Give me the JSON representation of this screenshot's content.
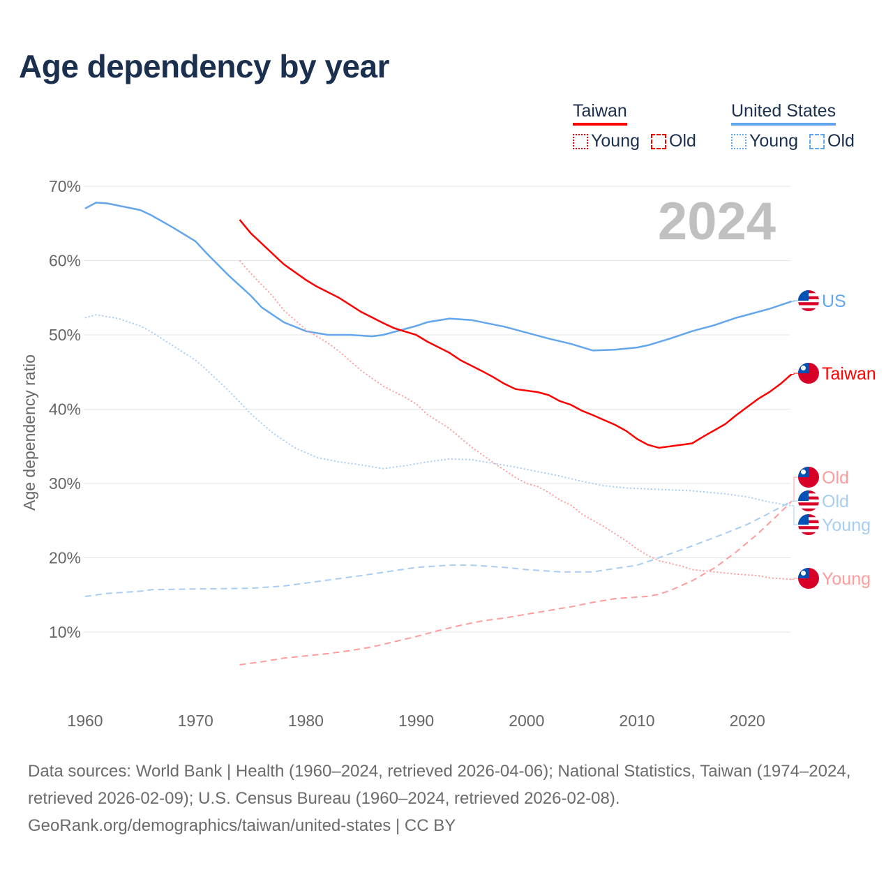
{
  "title": "Age dependency by year",
  "legend": {
    "taiwan": {
      "label": "Taiwan",
      "young": "Young",
      "old": "Old"
    },
    "us": {
      "label": "United States",
      "young": "Young",
      "old": "Old"
    }
  },
  "colors": {
    "taiwan": "#ff0000",
    "taiwan_light": "#ff9c9c",
    "us": "#63a6eb",
    "us_light": "#a8cdf3",
    "grid": "#e6e6e6",
    "year": "#c0c0c0"
  },
  "footer": {
    "sources": "Data sources: World Bank | Health (1960–2024, retrieved 2026-04-06); National Statistics, Taiwan (1974–2024, retrieved 2026-02-09); U.S. Census Bureau (1960–2024, retrieved 2026-02-08).",
    "credit": "GeoRank.org/demographics/taiwan/united-states | CC BY"
  },
  "chart_data": {
    "type": "line",
    "title": "Age dependency by year",
    "ylabel": "Age dependency ratio",
    "xlabel": "",
    "year_overlay": "2024",
    "xlim": [
      1960,
      2024
    ],
    "ylim": [
      0,
      70
    ],
    "xticks": [
      {
        "v": 1960,
        "label": "1960"
      },
      {
        "v": 1970,
        "label": "1970"
      },
      {
        "v": 1980,
        "label": "1980"
      },
      {
        "v": 1990,
        "label": "1990"
      },
      {
        "v": 2000,
        "label": "2000"
      },
      {
        "v": 2010,
        "label": "2010"
      },
      {
        "v": 2020,
        "label": "2020"
      }
    ],
    "yticks": [
      {
        "v": 10,
        "label": "10%"
      },
      {
        "v": 20,
        "label": "20%"
      },
      {
        "v": 30,
        "label": "30%"
      },
      {
        "v": 40,
        "label": "40%"
      },
      {
        "v": 50,
        "label": "50%"
      },
      {
        "v": 60,
        "label": "60%"
      },
      {
        "v": 70,
        "label": "70%"
      }
    ],
    "grid": true,
    "legend_position": "top-right",
    "series": [
      {
        "name": "United States",
        "end_label": "US",
        "flag": "us",
        "color": "us",
        "dash": "solid",
        "points": [
          [
            1960,
            67.0
          ],
          [
            1961,
            67.8
          ],
          [
            1962,
            67.7
          ],
          [
            1964,
            67.1
          ],
          [
            1965,
            66.8
          ],
          [
            1966,
            66.1
          ],
          [
            1968,
            64.4
          ],
          [
            1970,
            62.6
          ],
          [
            1971,
            61.0
          ],
          [
            1973,
            58.0
          ],
          [
            1975,
            55.3
          ],
          [
            1976,
            53.7
          ],
          [
            1978,
            51.7
          ],
          [
            1980,
            50.5
          ],
          [
            1982,
            50.0
          ],
          [
            1984,
            50.0
          ],
          [
            1986,
            49.8
          ],
          [
            1987,
            50.0
          ],
          [
            1989,
            50.8
          ],
          [
            1990,
            51.2
          ],
          [
            1991,
            51.7
          ],
          [
            1993,
            52.2
          ],
          [
            1995,
            52.0
          ],
          [
            1998,
            51.1
          ],
          [
            2000,
            50.3
          ],
          [
            2002,
            49.5
          ],
          [
            2004,
            48.8
          ],
          [
            2006,
            47.9
          ],
          [
            2008,
            48.0
          ],
          [
            2010,
            48.3
          ],
          [
            2011,
            48.6
          ],
          [
            2013,
            49.5
          ],
          [
            2015,
            50.5
          ],
          [
            2017,
            51.3
          ],
          [
            2019,
            52.3
          ],
          [
            2022,
            53.5
          ],
          [
            2024,
            54.5
          ]
        ]
      },
      {
        "name": "Taiwan",
        "end_label": "Taiwan",
        "flag": "tw",
        "color": "taiwan",
        "dash": "solid",
        "points": [
          [
            1974,
            65.5
          ],
          [
            1975,
            63.7
          ],
          [
            1976,
            62.3
          ],
          [
            1978,
            59.5
          ],
          [
            1980,
            57.4
          ],
          [
            1981,
            56.5
          ],
          [
            1983,
            55.0
          ],
          [
            1985,
            53.1
          ],
          [
            1987,
            51.6
          ],
          [
            1988,
            50.9
          ],
          [
            1990,
            50.0
          ],
          [
            1991,
            49.1
          ],
          [
            1993,
            47.6
          ],
          [
            1994,
            46.6
          ],
          [
            1996,
            45.1
          ],
          [
            1997,
            44.3
          ],
          [
            1998,
            43.4
          ],
          [
            1999,
            42.7
          ],
          [
            2001,
            42.3
          ],
          [
            2002,
            41.9
          ],
          [
            2003,
            41.1
          ],
          [
            2004,
            40.6
          ],
          [
            2005,
            39.8
          ],
          [
            2006,
            39.2
          ],
          [
            2008,
            37.9
          ],
          [
            2009,
            37.1
          ],
          [
            2010,
            36.0
          ],
          [
            2011,
            35.2
          ],
          [
            2012,
            34.8
          ],
          [
            2013,
            35.0
          ],
          [
            2015,
            35.4
          ],
          [
            2016,
            36.3
          ],
          [
            2018,
            38.0
          ],
          [
            2019,
            39.2
          ],
          [
            2020,
            40.3
          ],
          [
            2021,
            41.4
          ],
          [
            2022,
            42.3
          ],
          [
            2023,
            43.4
          ],
          [
            2024,
            44.7
          ]
        ]
      },
      {
        "name": "Taiwan Old",
        "end_label": "Old",
        "flag": "tw",
        "color": "taiwan_light",
        "dash": "dashed",
        "points": [
          [
            1974,
            5.6
          ],
          [
            1976,
            6.0
          ],
          [
            1978,
            6.5
          ],
          [
            1980,
            6.8
          ],
          [
            1982,
            7.1
          ],
          [
            1984,
            7.5
          ],
          [
            1986,
            8.0
          ],
          [
            1988,
            8.7
          ],
          [
            1990,
            9.4
          ],
          [
            1992,
            10.2
          ],
          [
            1994,
            10.9
          ],
          [
            1996,
            11.5
          ],
          [
            1998,
            11.9
          ],
          [
            2000,
            12.4
          ],
          [
            2002,
            12.9
          ],
          [
            2004,
            13.4
          ],
          [
            2006,
            14.0
          ],
          [
            2008,
            14.5
          ],
          [
            2010,
            14.7
          ],
          [
            2011,
            14.8
          ],
          [
            2012,
            15.1
          ],
          [
            2013,
            15.6
          ],
          [
            2015,
            16.9
          ],
          [
            2017,
            18.6
          ],
          [
            2019,
            20.8
          ],
          [
            2021,
            23.3
          ],
          [
            2023,
            26.1
          ],
          [
            2024,
            27.6
          ]
        ]
      },
      {
        "name": "United States Old",
        "end_label": "Old",
        "flag": "us",
        "color": "us_light",
        "dash": "dashed",
        "points": [
          [
            1960,
            14.8
          ],
          [
            1962,
            15.2
          ],
          [
            1965,
            15.5
          ],
          [
            1966,
            15.7
          ],
          [
            1970,
            15.8
          ],
          [
            1975,
            15.9
          ],
          [
            1978,
            16.2
          ],
          [
            1980,
            16.6
          ],
          [
            1985,
            17.6
          ],
          [
            1990,
            18.7
          ],
          [
            1993,
            19.0
          ],
          [
            1995,
            19.0
          ],
          [
            1998,
            18.7
          ],
          [
            2000,
            18.4
          ],
          [
            2003,
            18.1
          ],
          [
            2006,
            18.1
          ],
          [
            2010,
            19.0
          ],
          [
            2012,
            20.0
          ],
          [
            2015,
            21.6
          ],
          [
            2018,
            23.3
          ],
          [
            2020,
            24.5
          ],
          [
            2022,
            26.0
          ],
          [
            2024,
            27.6
          ]
        ]
      },
      {
        "name": "United States Young",
        "end_label": "Young",
        "flag": "us",
        "color": "us_light",
        "dash": "dotted",
        "points": [
          [
            1960,
            52.3
          ],
          [
            1961,
            52.7
          ],
          [
            1963,
            52.2
          ],
          [
            1965,
            51.2
          ],
          [
            1966,
            50.4
          ],
          [
            1968,
            48.5
          ],
          [
            1970,
            46.6
          ],
          [
            1971,
            45.3
          ],
          [
            1973,
            42.5
          ],
          [
            1975,
            39.4
          ],
          [
            1977,
            36.8
          ],
          [
            1979,
            34.8
          ],
          [
            1981,
            33.5
          ],
          [
            1983,
            32.9
          ],
          [
            1985,
            32.5
          ],
          [
            1987,
            32.0
          ],
          [
            1989,
            32.4
          ],
          [
            1991,
            32.9
          ],
          [
            1993,
            33.3
          ],
          [
            1995,
            33.2
          ],
          [
            1997,
            32.7
          ],
          [
            1999,
            32.2
          ],
          [
            2001,
            31.6
          ],
          [
            2003,
            31.0
          ],
          [
            2005,
            30.3
          ],
          [
            2007,
            29.7
          ],
          [
            2009,
            29.4
          ],
          [
            2012,
            29.2
          ],
          [
            2015,
            29.0
          ],
          [
            2018,
            28.6
          ],
          [
            2020,
            28.2
          ],
          [
            2022,
            27.5
          ],
          [
            2024,
            27.0
          ]
        ]
      },
      {
        "name": "Taiwan Young",
        "end_label": "Young",
        "flag": "tw",
        "color": "taiwan_light",
        "dash": "dotted",
        "points": [
          [
            1974,
            60.0
          ],
          [
            1975,
            58.3
          ],
          [
            1977,
            55.2
          ],
          [
            1978,
            53.3
          ],
          [
            1980,
            50.7
          ],
          [
            1982,
            48.9
          ],
          [
            1983,
            47.8
          ],
          [
            1985,
            45.2
          ],
          [
            1987,
            43.1
          ],
          [
            1989,
            41.6
          ],
          [
            1990,
            40.7
          ],
          [
            1991,
            39.3
          ],
          [
            1993,
            37.4
          ],
          [
            1995,
            34.9
          ],
          [
            1997,
            32.8
          ],
          [
            1999,
            30.8
          ],
          [
            2000,
            30.0
          ],
          [
            2001,
            29.6
          ],
          [
            2002,
            28.8
          ],
          [
            2003,
            27.8
          ],
          [
            2004,
            27.1
          ],
          [
            2005,
            25.9
          ],
          [
            2007,
            24.2
          ],
          [
            2009,
            22.3
          ],
          [
            2010,
            21.2
          ],
          [
            2011,
            20.3
          ],
          [
            2012,
            19.6
          ],
          [
            2014,
            18.9
          ],
          [
            2015,
            18.4
          ],
          [
            2017,
            18.1
          ],
          [
            2019,
            17.8
          ],
          [
            2021,
            17.6
          ],
          [
            2022,
            17.3
          ],
          [
            2024,
            17.1
          ]
        ]
      }
    ]
  }
}
